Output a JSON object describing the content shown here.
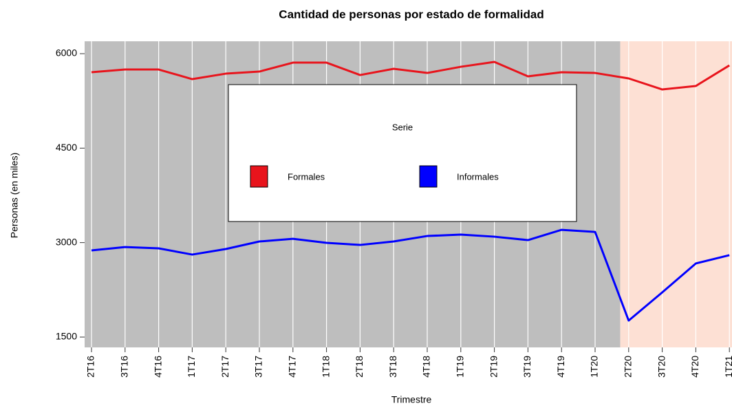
{
  "chart_data": {
    "type": "line",
    "title": "Cantidad de personas por estado de formalidad",
    "x_label": "Trimestre",
    "y_label": "Personas (en miles)",
    "legend_title": "Serie",
    "categories": [
      "2T16",
      "3T16",
      "4T16",
      "1T17",
      "2T17",
      "3T17",
      "4T17",
      "1T18",
      "2T18",
      "3T18",
      "4T18",
      "1T19",
      "2T19",
      "3T19",
      "4T19",
      "1T20",
      "2T20",
      "3T20",
      "4T20",
      "1T21"
    ],
    "series": [
      {
        "name": "Formales",
        "color": "#e8141c",
        "values": [
          5705,
          5749,
          5749,
          5596,
          5683,
          5716,
          5858,
          5858,
          5661,
          5760,
          5694,
          5792,
          5869,
          5640,
          5705,
          5694,
          5607,
          5432,
          5487,
          5814
        ]
      },
      {
        "name": "Informales",
        "color": "#0000ff",
        "values": [
          2876,
          2930,
          2909,
          2810,
          2898,
          3018,
          3061,
          2996,
          2963,
          3018,
          3105,
          3127,
          3094,
          3040,
          3203,
          3170,
          1762,
          2210,
          2669,
          2800
        ]
      }
    ],
    "ylim": [
      1336,
      6197
    ],
    "yticks": [
      1500,
      3000,
      4500,
      6000
    ],
    "grid": true
  }
}
